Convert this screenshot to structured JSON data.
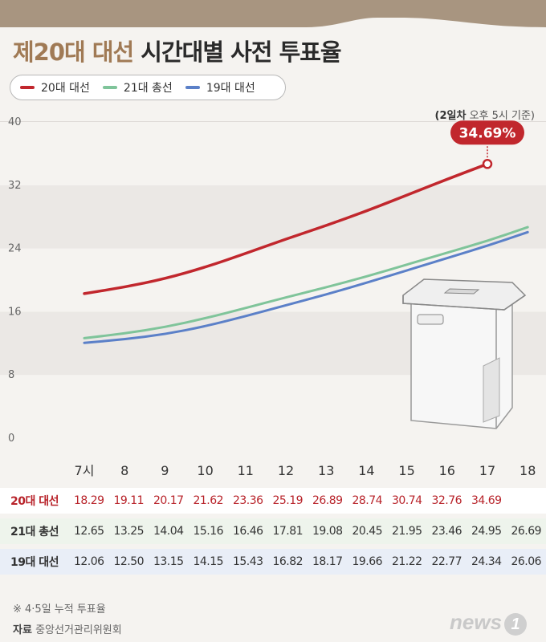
{
  "title": {
    "part_a": "제20대 대선",
    "part_b": "시간대별 사전 투표율"
  },
  "legend": [
    {
      "label": "20대 대선",
      "color": "#c1272d"
    },
    {
      "label": "21대 총선",
      "color": "#7fc49a"
    },
    {
      "label": "19대 대선",
      "color": "#5b80c8"
    }
  ],
  "basis": {
    "bold": "(2일차",
    "rest": "오후 5시 기준)"
  },
  "chart_data": {
    "type": "line",
    "x": [
      "7시",
      "8",
      "9",
      "10",
      "11",
      "12",
      "13",
      "14",
      "15",
      "16",
      "17",
      "18"
    ],
    "y_ticks": [
      "0",
      "8",
      "16",
      "24",
      "32",
      "40"
    ],
    "ylim": [
      0,
      40
    ],
    "series": [
      {
        "name": "20대 대선",
        "color": "#c1272d",
        "values": [
          18.29,
          19.11,
          20.17,
          21.62,
          23.36,
          25.19,
          26.89,
          28.74,
          30.74,
          32.76,
          34.69,
          null
        ]
      },
      {
        "name": "21대 총선",
        "color": "#7fc49a",
        "values": [
          12.65,
          13.25,
          14.04,
          15.16,
          16.46,
          17.81,
          19.08,
          20.45,
          21.95,
          23.46,
          24.95,
          26.69
        ]
      },
      {
        "name": "19대 대선",
        "color": "#5b80c8",
        "values": [
          12.06,
          12.5,
          13.15,
          14.15,
          15.43,
          16.82,
          18.17,
          19.66,
          21.22,
          22.77,
          24.34,
          26.06
        ]
      }
    ],
    "callout": {
      "label": "34.69%",
      "color": "#c1272d"
    }
  },
  "table": {
    "rows": [
      {
        "label": "20대 대선",
        "values": [
          "18.29",
          "19.11",
          "20.17",
          "21.62",
          "23.36",
          "25.19",
          "26.89",
          "28.74",
          "30.74",
          "32.76",
          "34.69",
          ""
        ]
      },
      {
        "label": "21대 총선",
        "values": [
          "12.65",
          "13.25",
          "14.04",
          "15.16",
          "16.46",
          "17.81",
          "19.08",
          "20.45",
          "21.95",
          "23.46",
          "24.95",
          "26.69"
        ]
      },
      {
        "label": "19대 대선",
        "values": [
          "12.06",
          "12.50",
          "13.15",
          "14.15",
          "15.43",
          "16.82",
          "18.17",
          "19.66",
          "21.22",
          "22.77",
          "24.34",
          "26.06"
        ]
      }
    ]
  },
  "footnote": "※ 4·5일 누적 투표율",
  "source": {
    "label": "자료",
    "text": "중앙선거관리위원회"
  },
  "logo": {
    "text": "news",
    "mark": "1"
  }
}
